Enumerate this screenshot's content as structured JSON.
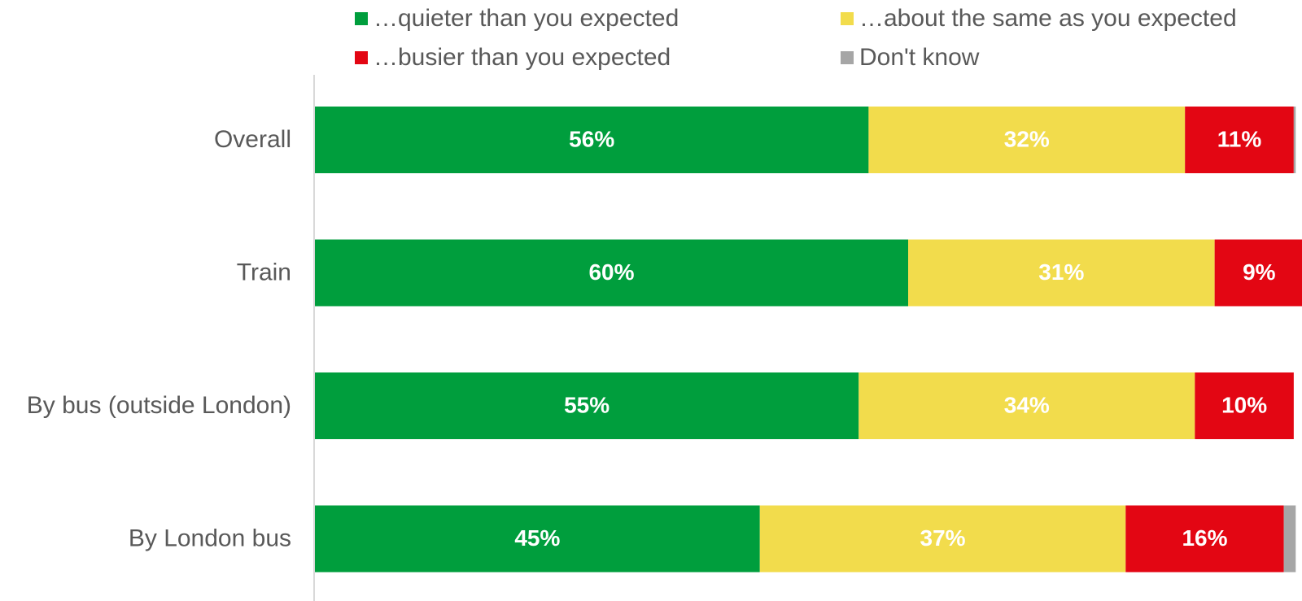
{
  "chart_data": {
    "type": "bar",
    "orientation": "horizontal",
    "stacked": true,
    "title": "",
    "xlabel": "",
    "ylabel": "",
    "xlim": [
      0,
      100
    ],
    "grid": false,
    "legend_position": "top",
    "categories": [
      "Overall",
      "Train",
      "By bus (outside London)",
      "By London bus"
    ],
    "series": [
      {
        "name": "…quieter than you expected",
        "color": "#009E3D",
        "values": [
          56,
          60,
          55,
          45
        ],
        "labels": [
          "56%",
          "60%",
          "55%",
          "45%"
        ]
      },
      {
        "name": "…about the same as you expected",
        "color": "#F2DC4C",
        "values": [
          32,
          31,
          34,
          37
        ],
        "labels": [
          "32%",
          "31%",
          "34%",
          "37%"
        ]
      },
      {
        "name": "…busier than you expected",
        "color": "#E30613",
        "values": [
          11,
          9,
          10,
          16
        ],
        "labels": [
          "11%",
          "9%",
          "10%",
          "16%"
        ]
      },
      {
        "name": "Don't know",
        "color": "#A6A6A6",
        "values": [
          0.2,
          0.2,
          0,
          1.2
        ],
        "labels": [
          "",
          "",
          "",
          ""
        ]
      }
    ]
  }
}
